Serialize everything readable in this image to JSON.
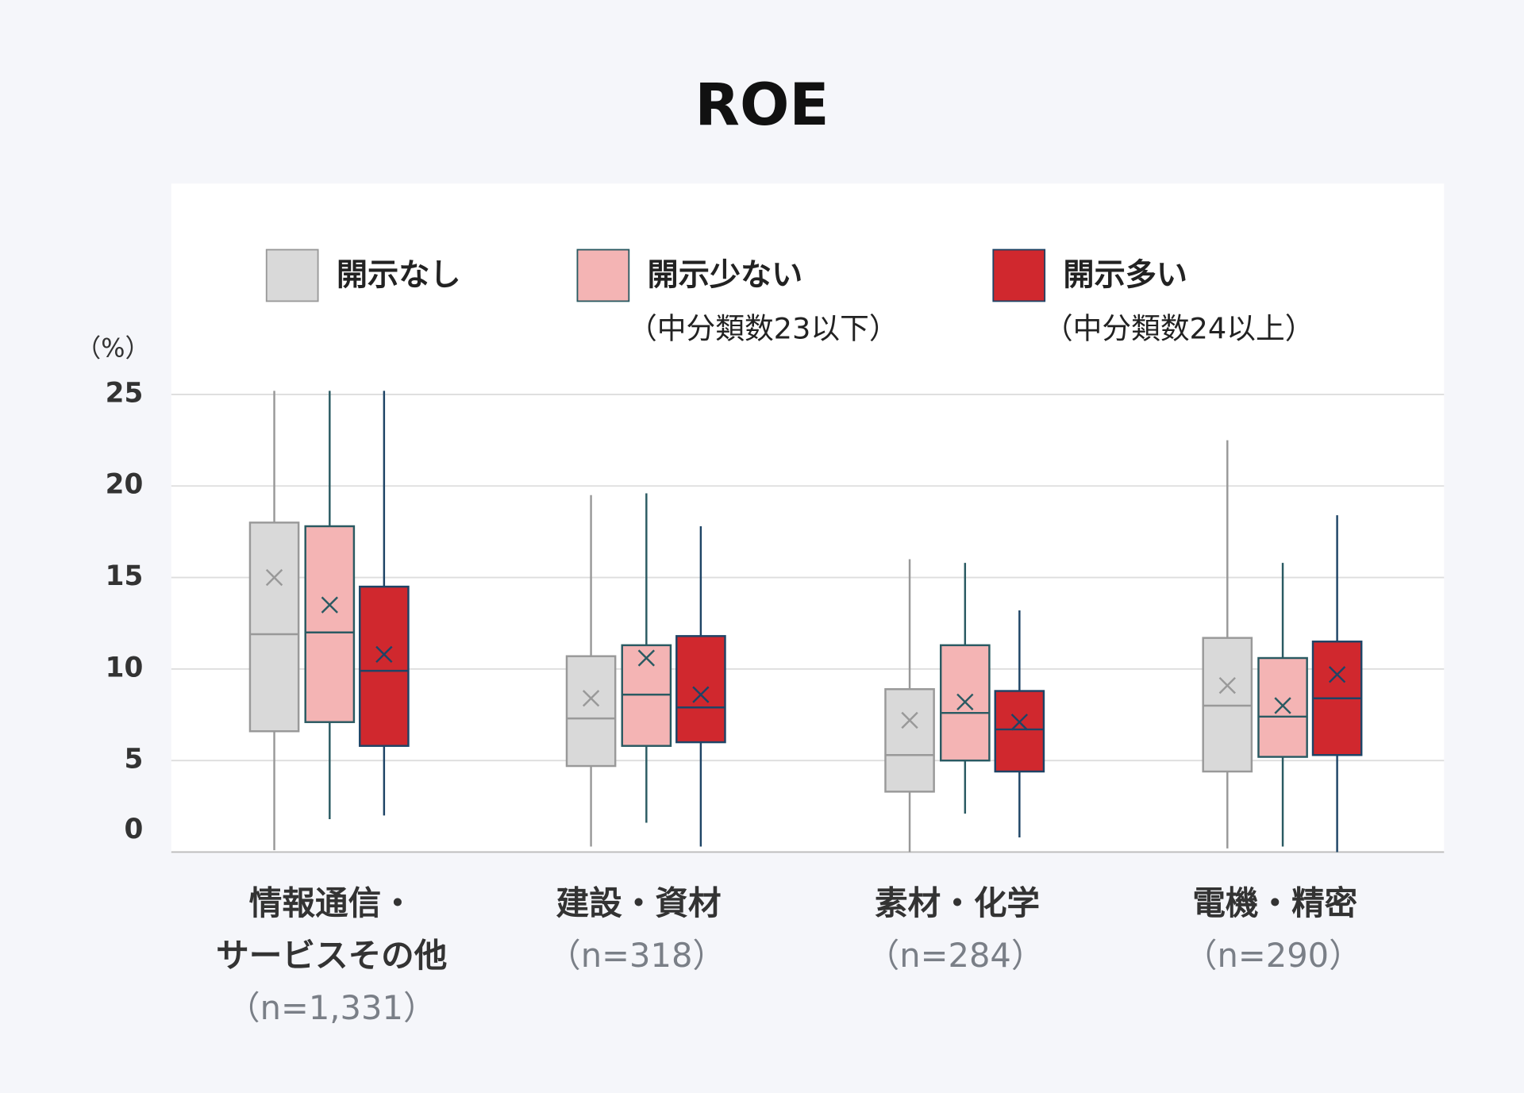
{
  "chart_data": {
    "type": "box",
    "title": "ROE",
    "y_unit": "（%）",
    "ylim": [
      0,
      25
    ],
    "yticks": [
      0,
      5,
      10,
      15,
      20,
      25
    ],
    "grid": true,
    "categories": [
      [
        "情報通信・",
        "サービスその他"
      ],
      [
        "建設・資材"
      ],
      [
        "素材・化学"
      ],
      [
        "電機・精密"
      ]
    ],
    "category_counts": [
      "（n=1,331）",
      "（n=318）",
      "（n=284）",
      "（n=290）"
    ],
    "series": [
      {
        "name": "開示なし",
        "color": "#d9d9d9",
        "stroke": "#999999",
        "values": [
          {
            "min": 0.1,
            "q1": 6.6,
            "median": 11.9,
            "q3": 18.0,
            "max": 25.2,
            "mean": 15.0
          },
          {
            "min": 0.3,
            "q1": 4.7,
            "median": 7.3,
            "q3": 10.7,
            "max": 19.5,
            "mean": 8.4
          },
          {
            "min": 0,
            "q1": 3.3,
            "median": 5.3,
            "q3": 8.9,
            "max": 16.0,
            "mean": 7.2
          },
          {
            "min": 0.2,
            "q1": 4.4,
            "median": 8.0,
            "q3": 11.7,
            "max": 22.5,
            "mean": 9.1
          }
        ]
      },
      {
        "name": "開示少ない",
        "sublabel": "（中分類数23以下）",
        "color": "#f4b4b4",
        "stroke": "#2a5a62",
        "values": [
          {
            "min": 1.8,
            "q1": 7.1,
            "median": 12.0,
            "q3": 17.8,
            "max": 25.2,
            "mean": 13.5
          },
          {
            "min": 1.6,
            "q1": 5.8,
            "median": 8.6,
            "q3": 11.3,
            "max": 19.6,
            "mean": 10.6
          },
          {
            "min": 2.1,
            "q1": 5.0,
            "median": 7.6,
            "q3": 11.3,
            "max": 15.8,
            "mean": 8.2
          },
          {
            "min": 0.3,
            "q1": 5.2,
            "median": 7.4,
            "q3": 10.6,
            "max": 15.8,
            "mean": 8.0
          }
        ]
      },
      {
        "name": "開示多い",
        "sublabel": "（中分類数24以上）",
        "color": "#d0282e",
        "stroke": "#1e4466",
        "values": [
          {
            "min": 2.0,
            "q1": 5.8,
            "median": 9.9,
            "q3": 14.5,
            "max": 25.2,
            "mean": 10.8
          },
          {
            "min": 0.3,
            "q1": 6.0,
            "median": 7.9,
            "q3": 11.8,
            "max": 17.8,
            "mean": 8.6
          },
          {
            "min": 0.8,
            "q1": 4.4,
            "median": 6.7,
            "q3": 8.8,
            "max": 13.2,
            "mean": 7.1
          },
          {
            "min": 0,
            "q1": 5.3,
            "median": 8.4,
            "q3": 11.5,
            "max": 18.4,
            "mean": 9.7
          }
        ]
      }
    ]
  }
}
